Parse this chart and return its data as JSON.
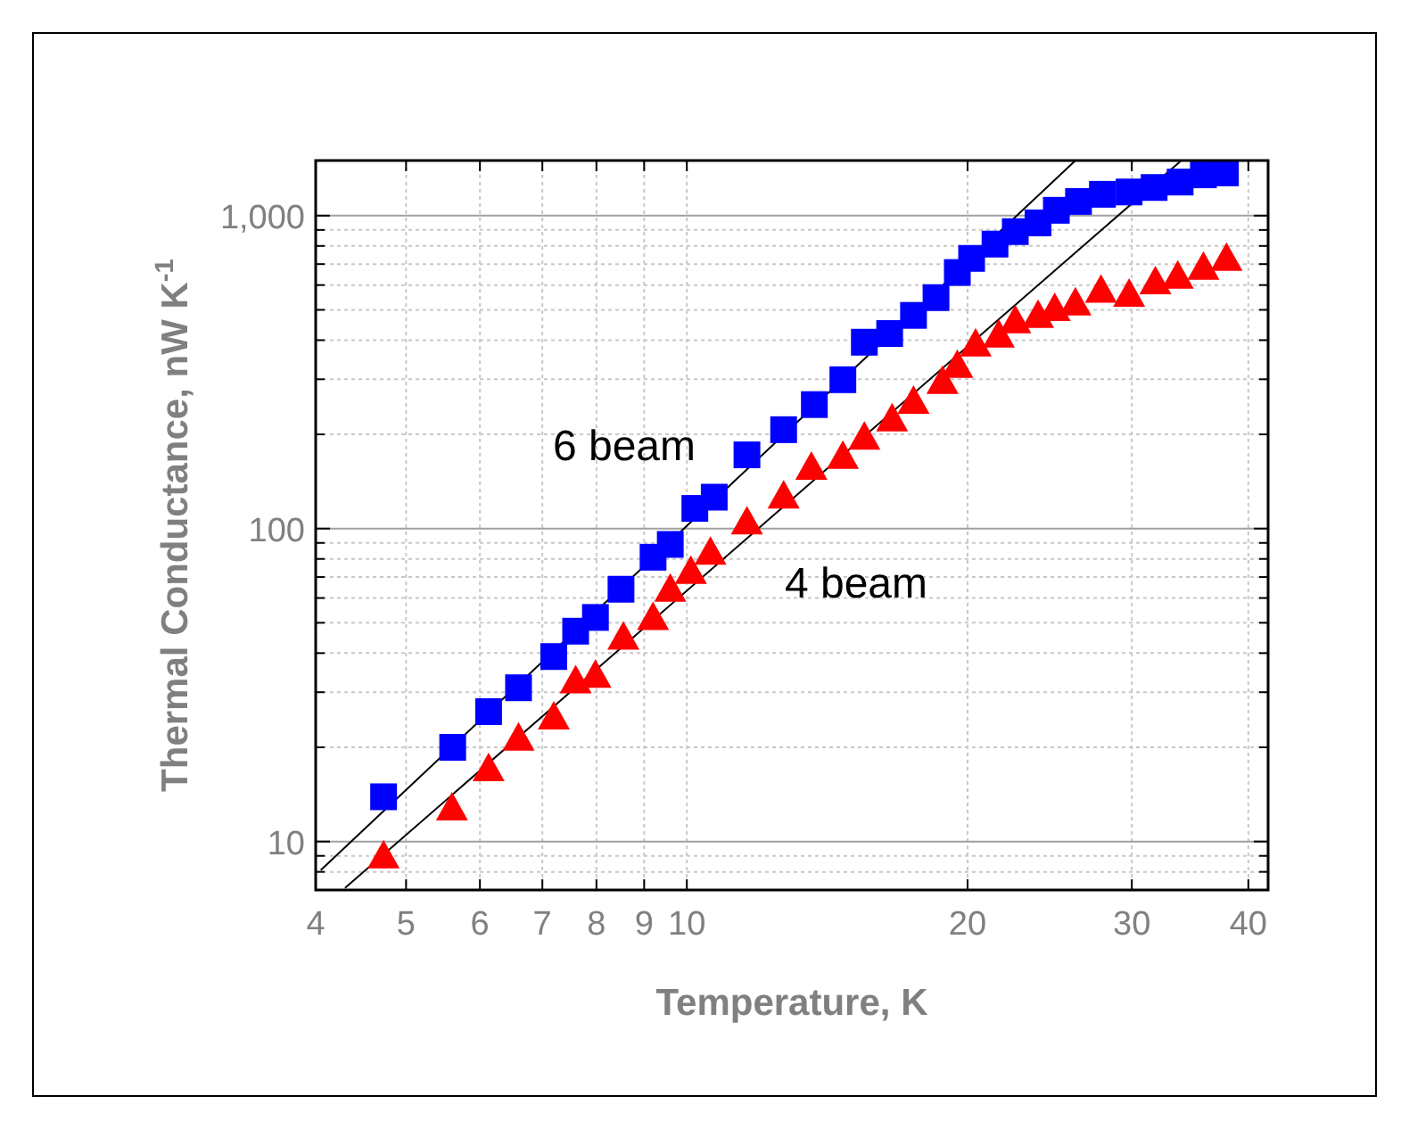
{
  "chart_data": {
    "type": "scatter",
    "xlabel": "Temperature, K",
    "ylabel": "Thermal Conductance, nW K$^{-1}$",
    "log": "xy",
    "grid": true,
    "xlim": [
      4,
      42
    ],
    "xticks": [
      4,
      5,
      6,
      7,
      8,
      9,
      10,
      20,
      30,
      40
    ],
    "ylim": [
      7,
      1500
    ],
    "yticks": [
      {
        "value": 8,
        "label": null
      },
      {
        "value": 9,
        "label": null
      },
      10,
      {
        "value": 20,
        "label": null
      },
      {
        "value": 30,
        "label": null
      },
      {
        "value": 40,
        "label": null
      },
      {
        "value": 50,
        "label": null
      },
      {
        "value": 60,
        "label": null
      },
      {
        "value": 70,
        "label": null
      },
      {
        "value": 80,
        "label": null
      },
      {
        "value": 90,
        "label": null
      },
      100,
      {
        "value": 200,
        "label": null
      },
      {
        "value": 300,
        "label": null
      },
      {
        "value": 400,
        "label": null
      },
      {
        "value": 500,
        "label": null
      },
      {
        "value": 600,
        "label": null
      },
      {
        "value": 700,
        "label": null
      },
      {
        "value": 800,
        "label": null
      },
      {
        "value": 900,
        "label": null
      },
      {
        "value": 1000,
        "label": "1,000"
      }
    ],
    "series": [
      {
        "type": "line",
        "color": "#000000",
        "marker": "none",
        "x": [
          4.05,
          26.1
        ],
        "values": [
          8.1,
          1500
        ]
      },
      {
        "type": "line",
        "color": "#000000",
        "marker": "none",
        "x": [
          4.3,
          33.9
        ],
        "values": [
          7.1,
          1500
        ]
      },
      {
        "color": "#0000ff",
        "marker": "square",
        "x": [
          4.73,
          5.61,
          6.13,
          6.6,
          7.2,
          7.6,
          7.98,
          8.5,
          9.2,
          9.6,
          10.2,
          10.7,
          11.6,
          12.7,
          13.7,
          14.7,
          15.5,
          16.5,
          17.5,
          18.5,
          19.5,
          20.2,
          21.4,
          22.5,
          23.8,
          24.9,
          26.3,
          27.9,
          29.8,
          31.7,
          33.8,
          35.8,
          37.8
        ],
        "values": [
          13.9,
          20,
          26,
          31,
          39,
          47,
          52,
          64,
          81,
          89,
          116,
          126,
          172,
          207,
          249,
          299,
          394,
          420,
          480,
          547,
          658,
          730,
          811,
          889,
          948,
          1040,
          1110,
          1170,
          1190,
          1230,
          1280,
          1350,
          1370
        ]
      },
      {
        "color": "#ff0000",
        "marker": "triangle",
        "x": [
          4.73,
          5.6,
          6.13,
          6.6,
          7.2,
          7.6,
          7.98,
          8.55,
          9.2,
          9.6,
          10.1,
          10.6,
          11.6,
          12.7,
          13.6,
          14.7,
          15.5,
          16.6,
          17.5,
          18.8,
          19.5,
          20.4,
          21.6,
          22.5,
          23.8,
          24.8,
          26.1,
          27.8,
          29.8,
          31.8,
          33.6,
          35.8,
          37.9
        ],
        "values": [
          9,
          12.8,
          17.1,
          21.4,
          25,
          32.6,
          34,
          45,
          52,
          64,
          73,
          84,
          105,
          127,
          157,
          170,
          196,
          224,
          255,
          295,
          332,
          389,
          415,
          461,
          480,
          505,
          526,
          577,
          561,
          615,
          640,
          684,
          730
        ]
      }
    ],
    "annotations": [
      "6 beam",
      "4 beam"
    ]
  }
}
